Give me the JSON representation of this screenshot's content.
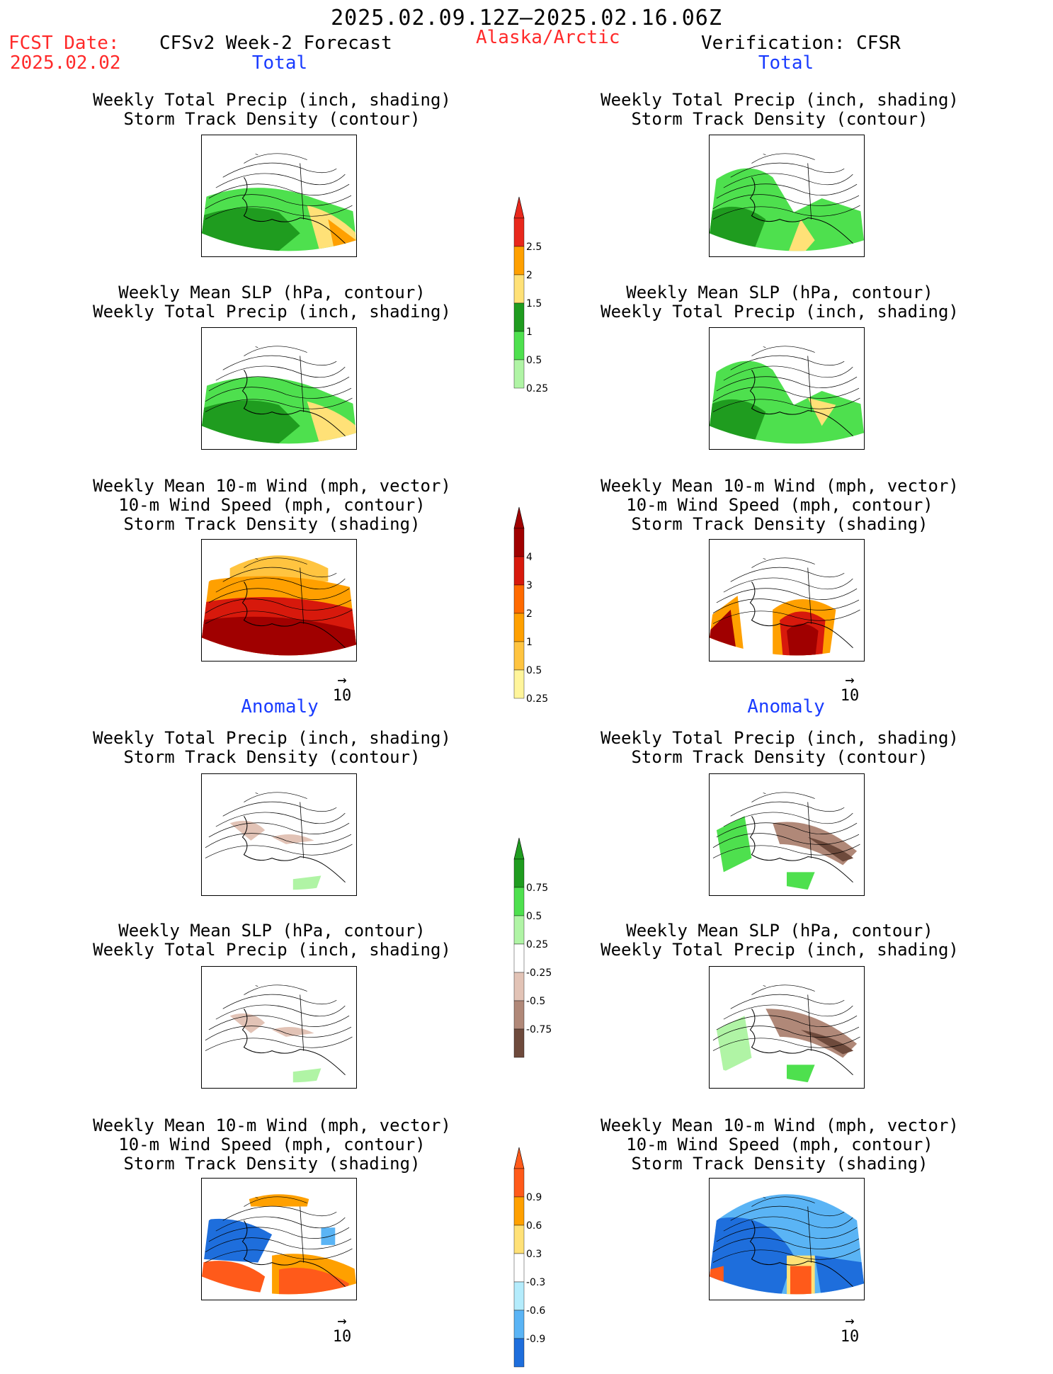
{
  "header": {
    "date_range": "2025.02.09.12Z–2025.02.16.06Z",
    "fcst_label": "FCST Date:",
    "fcst_date": "2025.02.02",
    "model": "CFSv2 Week-2 Forecast",
    "region": "Alaska/Arctic",
    "verification": "Verification: CFSR"
  },
  "sections": {
    "total": "Total",
    "anomaly": "Anomaly"
  },
  "panel_titles": {
    "precip_storm": [
      "Weekly Total Precip (inch, shading)",
      "Storm Track Density (contour)"
    ],
    "slp_precip": [
      "Weekly Mean SLP (hPa, contour)",
      "Weekly Total Precip (inch, shading)"
    ],
    "wind_storm": [
      "Weekly Mean 10-m Wind (mph, vector)",
      "10-m Wind Speed (mph, contour)",
      "Storm Track Density (shading)"
    ]
  },
  "vector_ref": "10",
  "colorbars": {
    "precip_total": {
      "labels": [
        "2.5",
        "2",
        "1.5",
        "1",
        "0.5",
        "0.25"
      ],
      "colors": [
        "#e8281c",
        "#ffa000",
        "#ffe177",
        "#1f9c1f",
        "#4ee04e",
        "#b0f4a5"
      ]
    },
    "storm_total": {
      "labels": [
        "4",
        "3",
        "2",
        "1",
        "0.5",
        "0.25"
      ],
      "colors": [
        "#a00000",
        "#d7190c",
        "#ff6a00",
        "#ffa000",
        "#ffc440",
        "#fff59b"
      ]
    },
    "precip_anom": {
      "labels": [
        "0.75",
        "0.5",
        "0.25",
        "-0.25",
        "-0.5",
        "-0.75"
      ],
      "colors": [
        "#1f9c1f",
        "#4ee04e",
        "#b0f4a5",
        "#ffffff",
        "#e2c3b6",
        "#b08878",
        "#6e4a3c"
      ]
    },
    "storm_anom": {
      "labels": [
        "0.9",
        "0.6",
        "0.3",
        "-0.3",
        "-0.6",
        "-0.9"
      ],
      "colors": [
        "#ff5a1a",
        "#ffa000",
        "#ffe177",
        "#ffffff",
        "#b4ecfc",
        "#5ab4f5",
        "#1e6edc"
      ]
    }
  }
}
